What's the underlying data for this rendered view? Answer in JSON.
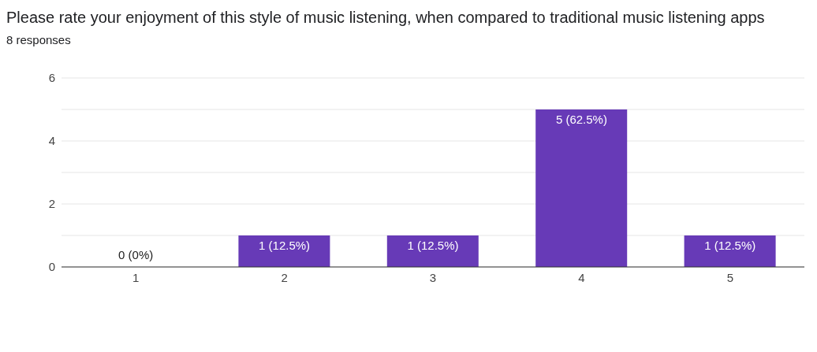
{
  "chart_data": {
    "type": "bar",
    "title": "Please rate your enjoyment of this style of music listening, when compared to traditional music listening apps",
    "subtitle": "8 responses",
    "categories": [
      "1",
      "2",
      "3",
      "4",
      "5"
    ],
    "values": [
      0,
      1,
      1,
      5,
      1
    ],
    "value_labels": [
      "0 (0%)",
      "1 (12.5%)",
      "1 (12.5%)",
      "5 (62.5%)",
      "1 (12.5%)"
    ],
    "color": "#673ab7",
    "ylim": [
      0,
      6
    ],
    "yticks": [
      0,
      {
        "value": 1,
        "label": null
      },
      2,
      {
        "value": 3,
        "label": null
      },
      4,
      {
        "value": 5,
        "label": null
      },
      6
    ],
    "grid": "y"
  }
}
